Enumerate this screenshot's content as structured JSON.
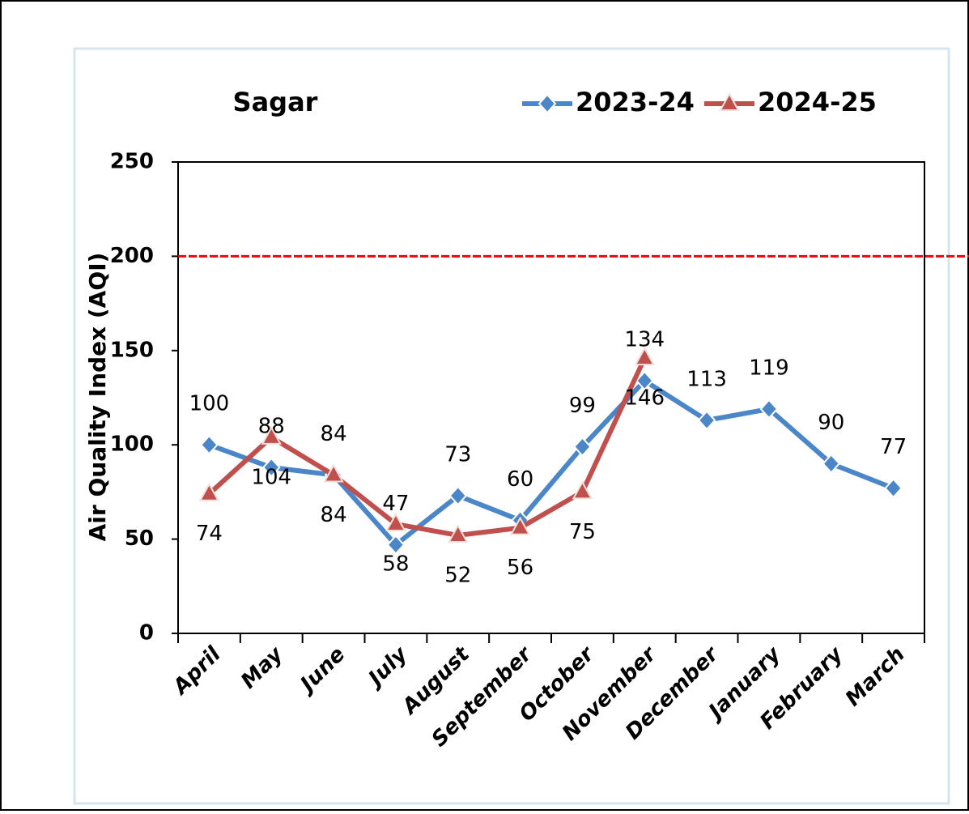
{
  "chart_data": {
    "type": "line",
    "title": "Sagar",
    "y_label": "Air Quality Index (AQI)",
    "categories": [
      "April",
      "May",
      "June",
      "July",
      "August",
      "September",
      "October",
      "November",
      "December",
      "January",
      "February",
      "March"
    ],
    "series": [
      {
        "name": "2023-24",
        "color": "#4a86c8",
        "marker": "diamond",
        "label_side": "above",
        "values": [
          100,
          88,
          84,
          47,
          73,
          60,
          99,
          134,
          113,
          119,
          90,
          77
        ]
      },
      {
        "name": "2024-25",
        "color": "#c0504d",
        "marker": "triangle",
        "label_side": "below",
        "values": [
          74,
          104,
          84,
          58,
          52,
          56,
          75,
          146,
          null,
          null,
          null,
          null
        ]
      }
    ],
    "reference_line": {
      "value": 200,
      "color": "#ff0000"
    },
    "ylim": [
      0,
      250
    ],
    "yticks": [
      0,
      50,
      100,
      150,
      200,
      250
    ],
    "legend": "top-right"
  }
}
